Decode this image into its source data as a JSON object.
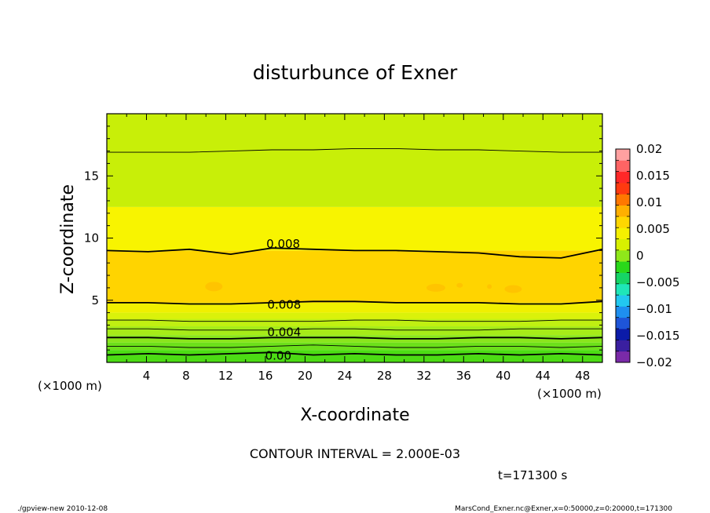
{
  "chart_data": {
    "type": "heatmap",
    "title": "disturbunce of Exner",
    "xlabel": "X-coordinate",
    "ylabel": "Z-coordinate",
    "x_unit_label": "(×1000 m)",
    "x_unit_label_right": "(×1000 m)",
    "xlim": [
      0,
      50
    ],
    "ylim": [
      0,
      20
    ],
    "x_ticks": [
      "4",
      "8",
      "12",
      "16",
      "20",
      "24",
      "28",
      "32",
      "36",
      "40",
      "44",
      "48"
    ],
    "y_ticks": [
      "5",
      "10",
      "15"
    ],
    "contour_interval_text": "CONTOUR INTERVAL = 2.000E-03",
    "time_text": "t=171300 s",
    "contour_labels": [
      "0.008",
      "0.008",
      "0.004",
      "0.00"
    ],
    "colorbar": {
      "labels": [
        "0.02",
        "0.015",
        "0.01",
        "0.005",
        "0",
        "−0.005",
        "−0.01",
        "−0.015",
        "−0.02"
      ],
      "range": [
        -0.02,
        0.02
      ],
      "colors": [
        "#7a2aa8",
        "#3a1fa0",
        "#0b1ba8",
        "#1e55d8",
        "#1e8ff0",
        "#22c8f0",
        "#1fe6b8",
        "#16d466",
        "#2ad81a",
        "#8fe81a",
        "#d7f000",
        "#f5f000",
        "#ffd700",
        "#ffb000",
        "#ff7800",
        "#ff3a10",
        "#ff2828",
        "#ff6464",
        "#ffa0a0"
      ]
    },
    "level_bands": [
      {
        "z_top": 1.0,
        "value": 0.0005,
        "color": "#4cdc14"
      },
      {
        "z_top": 1.6,
        "value": 0.0015,
        "color": "#6ce01a"
      },
      {
        "z_top": 2.2,
        "value": 0.0025,
        "color": "#8ae61c"
      },
      {
        "z_top": 2.9,
        "value": 0.0035,
        "color": "#a6ec18"
      },
      {
        "z_top": 3.5,
        "value": 0.0045,
        "color": "#c0f012"
      },
      {
        "z_top": 4.0,
        "value": 0.0055,
        "color": "#daf20a"
      },
      {
        "z_top": 4.8,
        "value": 0.0065,
        "color": "#f0f000"
      },
      {
        "z_top": 9.0,
        "value": 0.0085,
        "color": "#ffd400"
      },
      {
        "z_top": 12.5,
        "value": 0.0065,
        "color": "#f8f400"
      },
      {
        "z_top": 20.0,
        "value": 0.0045,
        "color": "#c8ef08"
      }
    ],
    "contour_lines": [
      {
        "z": [
          0.6,
          0.7,
          0.6,
          0.7,
          0.8,
          0.6,
          0.7,
          0.6,
          0.6,
          0.7,
          0.6,
          0.7,
          0.6
        ],
        "heavy": true
      },
      {
        "z": [
          1.3,
          1.3,
          1.2,
          1.2,
          1.3,
          1.4,
          1.3,
          1.2,
          1.2,
          1.3,
          1.3,
          1.2,
          1.3
        ],
        "heavy": false
      },
      {
        "z": [
          2.0,
          2.0,
          1.9,
          1.9,
          2.0,
          2.0,
          2.0,
          1.9,
          1.9,
          2.0,
          2.0,
          1.9,
          2.0
        ],
        "heavy": true
      },
      {
        "z": [
          2.7,
          2.7,
          2.6,
          2.6,
          2.6,
          2.7,
          2.7,
          2.6,
          2.6,
          2.6,
          2.7,
          2.7,
          2.7
        ],
        "heavy": false
      },
      {
        "z": [
          3.4,
          3.4,
          3.3,
          3.3,
          3.3,
          3.3,
          3.4,
          3.4,
          3.3,
          3.3,
          3.3,
          3.4,
          3.4
        ],
        "heavy": false
      },
      {
        "z": [
          4.8,
          4.8,
          4.7,
          4.7,
          4.8,
          4.9,
          4.9,
          4.8,
          4.8,
          4.8,
          4.7,
          4.7,
          4.9
        ],
        "heavy": true
      },
      {
        "z": [
          9.0,
          8.9,
          9.1,
          8.7,
          9.2,
          9.1,
          9.0,
          9.0,
          8.9,
          8.8,
          8.5,
          8.4,
          9.1
        ],
        "heavy": true
      },
      {
        "z": [
          16.9,
          16.9,
          16.9,
          17.0,
          17.1,
          17.1,
          17.2,
          17.2,
          17.1,
          17.1,
          17.0,
          16.9,
          16.9
        ],
        "heavy": false
      }
    ],
    "footer_left": "./gpview-new   2010-12-08",
    "footer_right": "MarsCond_Exner.nc@Exner,x=0:50000,z=0:20000,t=171300"
  }
}
